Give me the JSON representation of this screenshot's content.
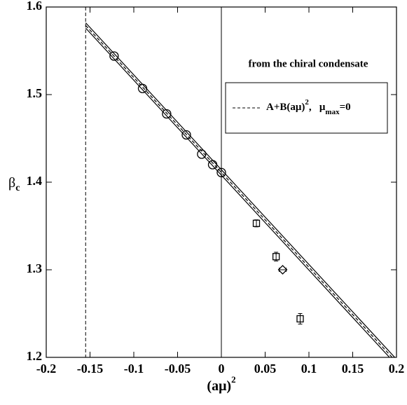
{
  "chart_data": {
    "type": "scatter",
    "xlabel": {
      "base": "(aμ)",
      "sup": "2"
    },
    "ylabel": {
      "base": "β",
      "sub": "c"
    },
    "annotation": "from the chiral condensate",
    "legend": {
      "parts": [
        "A+B(aμ)",
        "2",
        ",   μ",
        "max",
        "=0"
      ]
    },
    "xlim": [
      -0.2,
      0.2
    ],
    "xticks": [
      -0.2,
      -0.15,
      -0.1,
      -0.05,
      0,
      0.05,
      0.1,
      0.15,
      0.2
    ],
    "ylim": [
      1.2,
      1.6
    ],
    "yticks": [
      1.2,
      1.3,
      1.4,
      1.5,
      1.6
    ],
    "vlines": [
      {
        "x": -0.155,
        "dash": true
      },
      {
        "x": 0,
        "dash": false
      }
    ],
    "lines": [
      {
        "x": [
          -0.155,
          0.195
        ],
        "values": [
          1.579,
          1.2
        ],
        "dash": true,
        "color": "#000000"
      },
      {
        "x": [
          -0.155,
          0.198
        ],
        "values": [
          1.582,
          1.2
        ],
        "dash": false,
        "color": "#000000"
      },
      {
        "x": [
          -0.155,
          0.192
        ],
        "values": [
          1.576,
          1.2
        ],
        "dash": false,
        "color": "#000000"
      }
    ],
    "series": [
      {
        "marker": "circle",
        "color": "#000000",
        "x": [
          -0.1225,
          -0.09,
          -0.0625,
          -0.04,
          -0.0225,
          -0.01,
          0
        ],
        "values": [
          1.544,
          1.507,
          1.478,
          1.454,
          1.432,
          1.42,
          1.411
        ]
      },
      {
        "marker": "square",
        "color": "#000000",
        "x": [
          0.04,
          0.0625,
          0.09
        ],
        "values": [
          1.353,
          1.315,
          1.244
        ],
        "errors": [
          0.004,
          0.005,
          0.006
        ]
      },
      {
        "marker": "diamond",
        "color": "#000000",
        "x": [
          0.07
        ],
        "values": [
          1.3
        ],
        "xerrors": [
          0.004
        ]
      }
    ]
  }
}
